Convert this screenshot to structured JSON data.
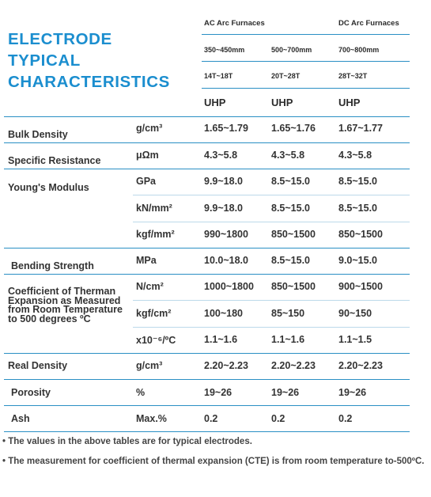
{
  "title": [
    "ELECTRODE",
    "TYPICAL",
    "CHARACTERISTICS"
  ],
  "groups": {
    "ac": "AC Arc Furnaces",
    "dc": "DC Arc Furnaces"
  },
  "diameters": [
    "350~450mm",
    "500~700mm",
    "700~800mm"
  ],
  "weights": [
    "14T~18T",
    "20T~28T",
    "28T~32T"
  ],
  "grades": [
    "UHP",
    "UHP",
    "UHP"
  ],
  "rows": [
    {
      "label": "Bulk Density",
      "unit": "g/cm³",
      "values": [
        "1.65~1.79",
        "1.65~1.76",
        "1.67~1.77"
      ]
    },
    {
      "label": "Specific Resistance",
      "unit": "μΩm",
      "values": [
        "4.3~5.8",
        "4.3~5.8",
        "4.3~5.8"
      ]
    },
    {
      "label": "Young's Modulus",
      "unit": "GPa",
      "values": [
        "9.9~18.0",
        "8.5~15.0",
        "8.5~15.0"
      ]
    },
    {
      "label": "",
      "unit": "kN/mm²",
      "values": [
        "9.9~18.0",
        "8.5~15.0",
        "8.5~15.0"
      ]
    },
    {
      "label": "",
      "unit": "kgf/mm²",
      "values": [
        "990~1800",
        "850~1500",
        "850~1500"
      ]
    },
    {
      "label": "Bending Strength",
      "unit": "MPa",
      "values": [
        "10.0~18.0",
        "8.5~15.0",
        "9.0~15.0"
      ]
    },
    {
      "label": "Coefficient of Therman Expansion as Measured from Room Temperature to 500 degrees ºC",
      "unit": "N/cm²",
      "values": [
        "1000~1800",
        "850~1500",
        "900~1500"
      ]
    },
    {
      "label": "",
      "unit": "kgf/cm²",
      "values": [
        "100~180",
        "85~150",
        "90~150"
      ]
    },
    {
      "label": "",
      "unit": "x10⁻⁶/ºC",
      "values": [
        "1.1~1.6",
        "1.1~1.6",
        "1.1~1.5"
      ]
    },
    {
      "label": "Real Density",
      "unit": "g/cm³",
      "values": [
        "2.20~2.23",
        "2.20~2.23",
        "2.20~2.23"
      ]
    },
    {
      "label": "Porosity",
      "unit": "%",
      "values": [
        "19~26",
        "19~26",
        "19~26"
      ]
    },
    {
      "label": "Ash",
      "unit": "Max.%",
      "values": [
        "0.2",
        "0.2",
        "0.2"
      ]
    }
  ],
  "notes": [
    "• The values in the above tables are for typical electrodes.",
    "• The measurement for coefficient of thermal expansion (CTE) is from room temperature to-500ºC."
  ],
  "colors": {
    "accent": "#1b8ecf",
    "rule": "#2a8fc4"
  }
}
